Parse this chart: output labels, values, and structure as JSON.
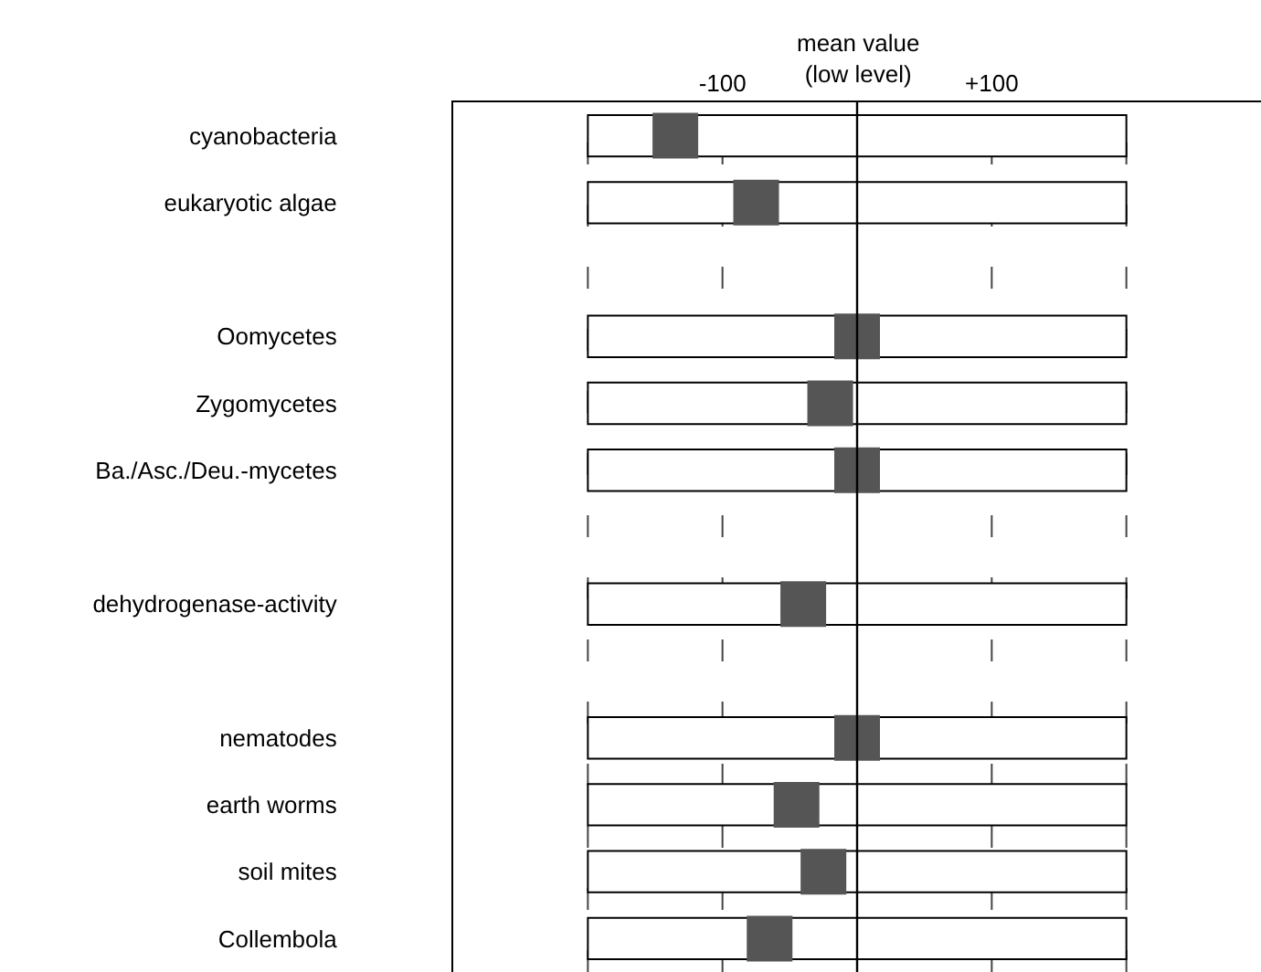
{
  "chart_data": {
    "type": "bar",
    "orientation": "horizontal",
    "categories": [
      "cyanobacteria",
      "eukaryotic algae",
      null,
      "Oomycetes",
      "Zygomycetes",
      "Ba./Asc./Deu.-mycetes",
      null,
      "dehydrogenase-activity",
      null,
      "nematodes",
      "earth worms",
      "soil mites",
      "Collembola"
    ],
    "series": [
      {
        "type": "bar",
        "color": "#ffffff",
        "base": [
          -200,
          -200,
          null,
          -200,
          -200,
          -200,
          null,
          -200,
          null,
          -200,
          -200,
          -200,
          -200
        ],
        "values": [
          400,
          400,
          null,
          400,
          400,
          400,
          null,
          400,
          null,
          400,
          400,
          400,
          400
        ]
      },
      {
        "type": "scatter",
        "marker": "square",
        "color": "#555555",
        "values": [
          -135,
          -75,
          null,
          0,
          -20,
          0,
          null,
          -40,
          null,
          0,
          -45,
          -25,
          -65
        ]
      }
    ],
    "xlim": [
      -300,
      300
    ],
    "xticks": [
      {
        "value": -200,
        "label": null
      },
      {
        "value": -100,
        "label": "-100"
      },
      {
        "value": 100,
        "label": "+100"
      },
      {
        "value": 200,
        "label": null
      }
    ],
    "ref_lines": [
      {
        "axis": "x",
        "value": 0,
        "label": "mean value\n(low level)",
        "color": "#000000"
      }
    ],
    "grid": "x",
    "legend": false
  }
}
